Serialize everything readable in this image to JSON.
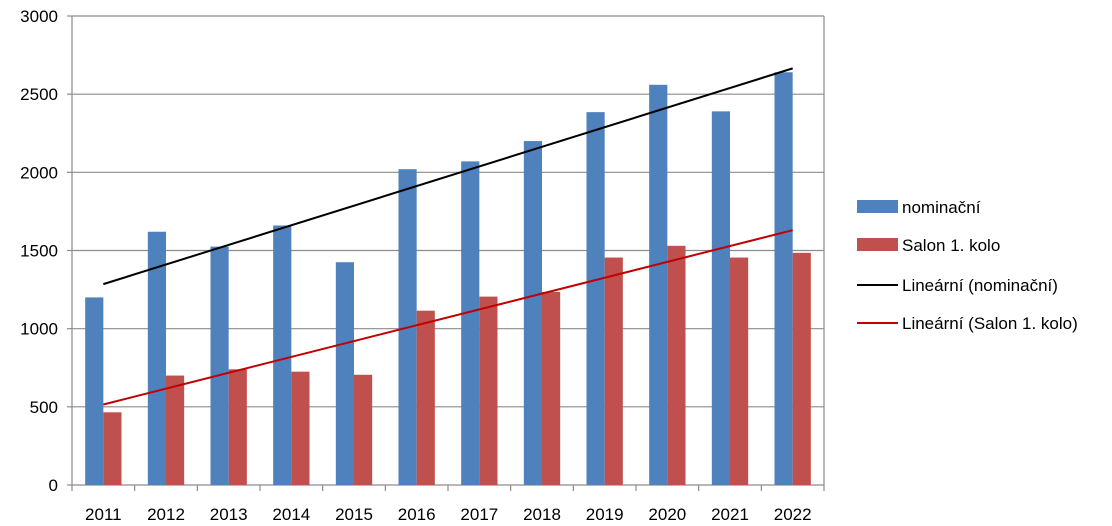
{
  "chart_data": {
    "type": "bar",
    "title": "",
    "xlabel": "",
    "ylabel": "",
    "categories": [
      "2011",
      "2012",
      "2013",
      "2014",
      "2015",
      "2016",
      "2017",
      "2018",
      "2019",
      "2020",
      "2021",
      "2022"
    ],
    "series": [
      {
        "name": "nominační",
        "color": "#4f81bd",
        "values": [
          1200,
          1620,
          1525,
          1660,
          1425,
          2020,
          2070,
          2200,
          2385,
          2560,
          2390,
          2640
        ]
      },
      {
        "name": "Salon 1. kolo",
        "color": "#c0504d",
        "values": [
          465,
          700,
          740,
          725,
          705,
          1115,
          1205,
          1235,
          1455,
          1530,
          1455,
          1485
        ]
      }
    ],
    "trendlines": [
      {
        "name": "Lineární (nominační)",
        "color": "#000000",
        "start": 1285,
        "end": 2665
      },
      {
        "name": "Lineární (Salon 1. kolo)",
        "color": "#c00000",
        "start": 515,
        "end": 1630
      }
    ],
    "ylim": [
      0,
      3000
    ],
    "yticks": [
      "0",
      "500",
      "1000",
      "1500",
      "2000",
      "2500",
      "3000"
    ],
    "grid": true,
    "legend_position": "right"
  }
}
